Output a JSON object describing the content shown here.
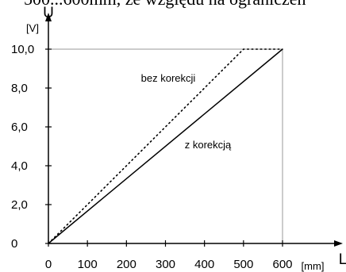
{
  "page": {
    "top_text": "500...600mm, ze względu na ograniczen"
  },
  "chart_data": {
    "type": "line",
    "x_axis": {
      "name": "L",
      "unit": "[mm]",
      "range": [
        0,
        600
      ],
      "ticks": [
        0,
        100,
        200,
        300,
        400,
        500,
        600
      ],
      "tick_labels": [
        "0",
        "100",
        "200",
        "300",
        "400",
        "500",
        "600"
      ]
    },
    "y_axis": {
      "name": "U",
      "unit": "[V]",
      "range": [
        0,
        10
      ],
      "ticks": [
        0,
        2,
        4,
        6,
        8,
        10
      ],
      "tick_labels": [
        "0",
        "2,0",
        "4,0",
        "6,0",
        "8,0",
        "10,0"
      ]
    },
    "series": [
      {
        "name": "bez korekcji",
        "style": "dotted",
        "color": "#000000",
        "points": [
          [
            0,
            0
          ],
          [
            500,
            10
          ],
          [
            600,
            10
          ]
        ]
      },
      {
        "name": "z korekcją",
        "style": "solid",
        "color": "#000000",
        "points": [
          [
            0,
            0
          ],
          [
            600,
            10
          ]
        ]
      }
    ],
    "reference_lines": [
      {
        "orientation": "horizontal",
        "value": 10,
        "color": "#999999"
      },
      {
        "orientation": "vertical",
        "value": 600,
        "color": "#999999"
      }
    ]
  }
}
